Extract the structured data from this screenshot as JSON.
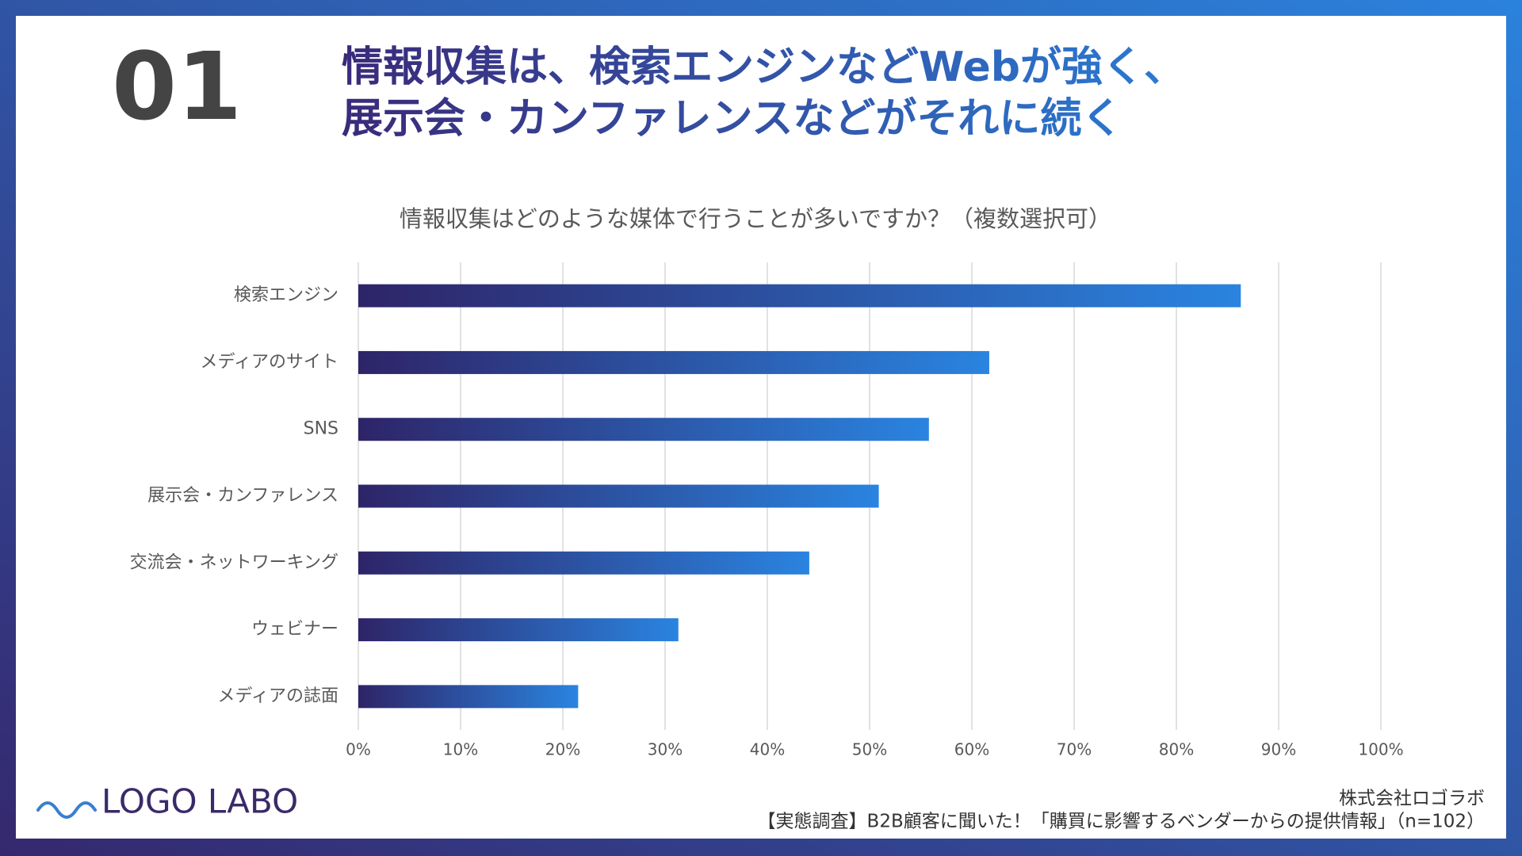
{
  "slide": {
    "number": "01",
    "title": [
      "情報収集は、検索エンジンなどWebが強く、",
      "展示会・カンファレンスなどがそれに続く"
    ],
    "logo": "LOGO LABO",
    "company": "株式会社ロゴラボ",
    "footnote": "【実態調査】B2B顧客に聞いた！「購買に影響するベンダーからの提供情報」（n=102）"
  },
  "chart_data": {
    "type": "bar",
    "orientation": "horizontal",
    "title": "情報収集はどのような媒体で行うことが多いですか？（複数選択可）",
    "categories": [
      "検索エンジン",
      "メディアのサイト",
      "SNS",
      "展示会・カンファレンス",
      "交流会・ネットワーキング",
      "ウェビナー",
      "メディアの誌面"
    ],
    "values": [
      86.3,
      61.7,
      55.8,
      50.9,
      44.1,
      31.3,
      21.5
    ],
    "color": [
      "#2e2468",
      "#2a84e0"
    ],
    "xlim": [
      0,
      100
    ],
    "xticks": [
      {
        "value": 0,
        "label": "0%"
      },
      {
        "value": 10,
        "label": "10%"
      },
      {
        "value": 20,
        "label": "20%"
      },
      {
        "value": 30,
        "label": "30%"
      },
      {
        "value": 40,
        "label": "40%"
      },
      {
        "value": 50,
        "label": "50%"
      },
      {
        "value": 60,
        "label": "60%"
      },
      {
        "value": 70,
        "label": "70%"
      },
      {
        "value": 80,
        "label": "80%"
      },
      {
        "value": 90,
        "label": "90%"
      },
      {
        "value": 100,
        "label": "100%"
      }
    ],
    "grid": true
  }
}
